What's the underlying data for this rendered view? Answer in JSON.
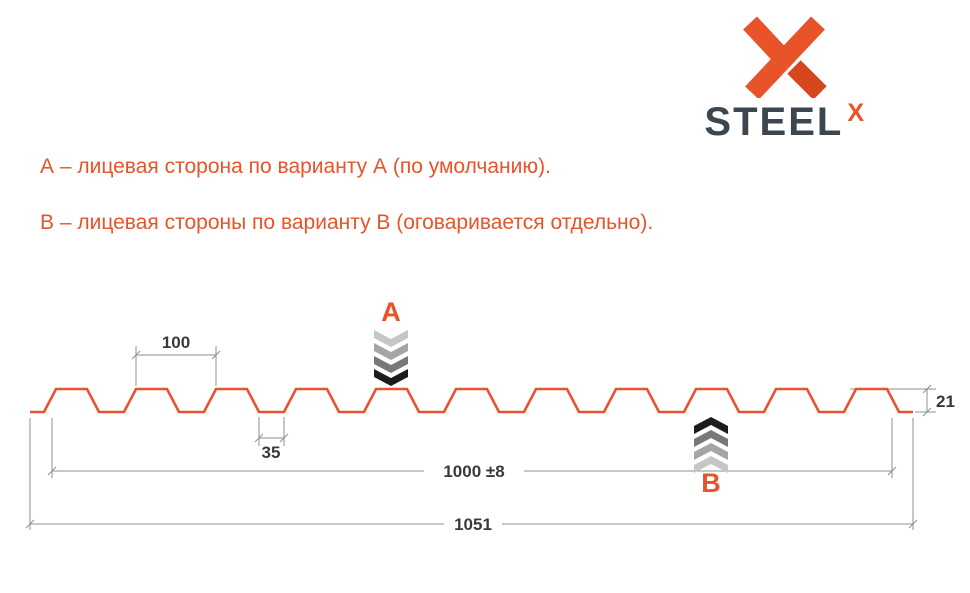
{
  "logo": {
    "wordmark": "STEEL",
    "mark_x": "X"
  },
  "notes": {
    "line_a": "А – лицевая сторона по варианту А (по умолчанию).",
    "line_b": "В – лицевая стороны по варианту В (оговаривается отдельно)."
  },
  "diagram": {
    "dimensions": {
      "pitch": "100",
      "valley_width": "35",
      "working_width": "1000 ±8",
      "overall_width": "1051",
      "profile_height": "21"
    },
    "sides": {
      "a": "А",
      "b": "В"
    },
    "colors": {
      "profile": "#e8532a",
      "accent": "#e8532a",
      "dimension_line": "#8f8f8f",
      "dimension_text": "#3a3a3a",
      "chevrons_a": [
        "#c6c6c6",
        "#a5a5a5",
        "#787878",
        "#1c1c1c"
      ],
      "chevrons_b": [
        "#1c1c1c",
        "#787878",
        "#a5a5a5",
        "#c6c6c6"
      ]
    }
  }
}
